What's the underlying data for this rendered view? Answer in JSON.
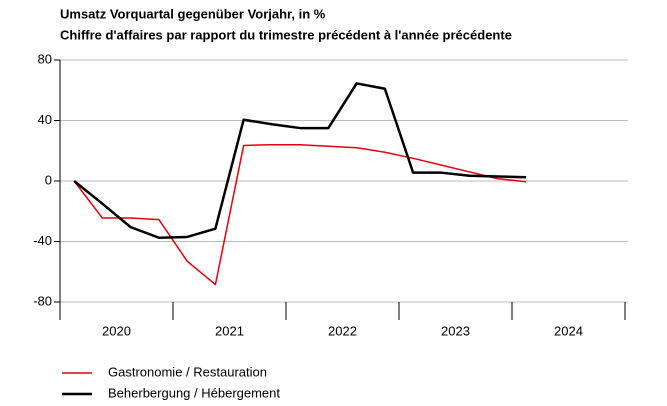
{
  "chart_data": {
    "type": "line",
    "title": "Umsatz Vorquartal gegenüber Vorjahr, in %",
    "subtitle": "Chiffre d'affaires par rapport du trimestre précédent à l'année précédente",
    "x": [
      2020.125,
      2020.375,
      2020.625,
      2020.875,
      2021.125,
      2021.375,
      2021.625,
      2021.875,
      2022.125,
      2022.375,
      2022.625,
      2022.875,
      2023.125,
      2023.375,
      2023.625,
      2023.875,
      2024.125
    ],
    "series": [
      {
        "name": "Gastronomie / Restauration",
        "color": "#e3000f",
        "values": [
          0,
          -24.5,
          -24.5,
          -25.5,
          -53,
          -68.5,
          23.5,
          24,
          24,
          23,
          22,
          19,
          15,
          10.5,
          6,
          1.5,
          -0.5
        ]
      },
      {
        "name": "Beherbergung / Hébergement",
        "color": "#000000",
        "values": [
          0,
          -15,
          -30.5,
          -37.5,
          -37,
          -31.5,
          40.5,
          37.5,
          35,
          35,
          64.5,
          61,
          5.5,
          5.5,
          3.5,
          3,
          2.5
        ]
      }
    ],
    "xlim": [
      2020,
      2025
    ],
    "xticks": [
      {
        "value": 2020.5,
        "label": "2020"
      },
      {
        "value": 2021.5,
        "label": "2021"
      },
      {
        "value": 2022.5,
        "label": "2022"
      },
      {
        "value": 2023.5,
        "label": "2023"
      },
      {
        "value": 2024.5,
        "label": "2024"
      }
    ],
    "xtick_marks": [
      2020,
      2021,
      2022,
      2023,
      2024,
      2025
    ],
    "ylim": [
      -80,
      80
    ],
    "yticks": [
      -80,
      -40,
      0,
      40,
      80
    ],
    "grid": true
  }
}
